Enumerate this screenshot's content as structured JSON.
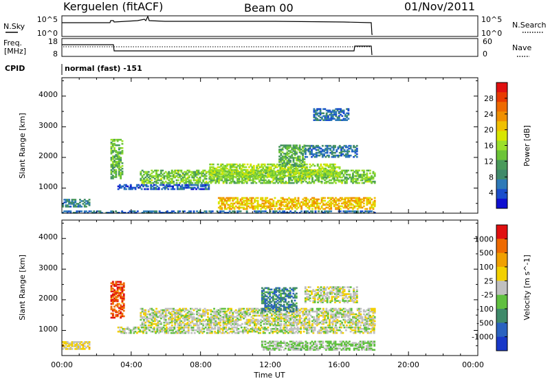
{
  "header": {
    "site_title": "Kerguelen (fitACF)",
    "beam_title": "Beam 00",
    "date_title": "01/Nov/2011"
  },
  "noise_panel": {
    "left_label": "N.Sky",
    "right_label": "N.Search",
    "left_ticks": [
      "10^5",
      "10^0"
    ],
    "right_ticks": [
      "10^5",
      "10^0"
    ]
  },
  "freq_panel": {
    "left_label_line1": "Freq.",
    "left_label_line2": "[MHz]",
    "right_label": "Nave",
    "left_ticks": [
      "18",
      "8"
    ],
    "right_ticks": [
      "60",
      "0"
    ],
    "freq_mhz_low": 11.5,
    "freq_mhz_high": 13.0,
    "nave_level": 22
  },
  "cpid": {
    "label": "CPID",
    "text": "normal (fast) -151"
  },
  "chart_data": [
    {
      "type": "heatmap",
      "title": "Power",
      "xlabel": "",
      "ylabel": "Slant Range [km]",
      "xlim": [
        0,
        24
      ],
      "ylim": [
        180,
        4600
      ],
      "x_ticks": [
        "00:00",
        "04:00",
        "08:00",
        "12:00",
        "16:00",
        "20:00",
        "00:00"
      ],
      "y_ticks": [
        "1000",
        "2000",
        "3000",
        "4000"
      ],
      "colorbar": {
        "label": "Power [dB]",
        "range": [
          0,
          32
        ],
        "ticks": [
          "4",
          "8",
          "12",
          "16",
          "20",
          "24",
          "28"
        ],
        "colors": [
          "#1010d0",
          "#1a4ecc",
          "#2e7ab8",
          "#3f8a6a",
          "#4a9a5a",
          "#6cc438",
          "#9be02a",
          "#d8e600",
          "#f0c000",
          "#f09000",
          "#ee6a00",
          "#e83a00",
          "#e01010"
        ]
      },
      "bands": [
        {
          "t0": 0.0,
          "t1": 18.0,
          "r0": 180,
          "r1": 260,
          "value": 6
        },
        {
          "t0": 0.0,
          "t1": 1.6,
          "r0": 380,
          "r1": 650,
          "value": 8
        },
        {
          "t0": 2.8,
          "t1": 3.5,
          "r0": 1300,
          "r1": 2600,
          "value": 13
        },
        {
          "t0": 3.2,
          "t1": 8.5,
          "r0": 950,
          "r1": 1100,
          "value": 5
        },
        {
          "t0": 4.5,
          "t1": 18.0,
          "r0": 1150,
          "r1": 1600,
          "value": 14
        },
        {
          "t0": 8.5,
          "t1": 16.0,
          "r0": 1350,
          "r1": 1800,
          "value": 16
        },
        {
          "t0": 9.0,
          "t1": 18.0,
          "r0": 300,
          "r1": 700,
          "value": 21
        },
        {
          "t0": 12.5,
          "t1": 14.0,
          "r0": 1700,
          "r1": 2400,
          "value": 12
        },
        {
          "t0": 14.0,
          "t1": 17.0,
          "r0": 2000,
          "r1": 2400,
          "value": 7
        },
        {
          "t0": 14.5,
          "t1": 16.5,
          "r0": 3200,
          "r1": 3600,
          "value": 6
        }
      ]
    },
    {
      "type": "heatmap",
      "title": "Velocity",
      "xlabel": "Time UT",
      "ylabel": "Slant Range [km]",
      "xlim": [
        0,
        24
      ],
      "ylim": [
        180,
        4600
      ],
      "x_ticks": [
        "00:00",
        "04:00",
        "08:00",
        "12:00",
        "16:00",
        "20:00",
        "00:00"
      ],
      "y_ticks": [
        "1000",
        "2000",
        "3000",
        "4000"
      ],
      "colorbar": {
        "label": "Velocity [m s^-1]",
        "range": [
          -1200,
          1200
        ],
        "ticks": [
          "1000",
          "500",
          "100",
          "25",
          "-25",
          "-100",
          "-500",
          "-1000"
        ],
        "colors": [
          "#1838c8",
          "#2a62c0",
          "#3f8a6a",
          "#60c040",
          "#c0c0c0",
          "#f2d000",
          "#f0a000",
          "#ee6a00",
          "#e01010"
        ]
      },
      "bands": [
        {
          "t0": 0.0,
          "t1": 1.6,
          "r0": 380,
          "r1": 650,
          "value": 200
        },
        {
          "t0": 2.8,
          "t1": 3.6,
          "r0": 1400,
          "r1": 2600,
          "value": 900
        },
        {
          "t0": 3.2,
          "t1": 18.0,
          "r0": 900,
          "r1": 1100,
          "value": 0
        },
        {
          "t0": 4.5,
          "t1": 18.0,
          "r0": 1150,
          "r1": 1700,
          "value": 0
        },
        {
          "t0": 11.5,
          "t1": 13.5,
          "r0": 1600,
          "r1": 2400,
          "value": -600
        },
        {
          "t0": 11.5,
          "t1": 18.0,
          "r0": 350,
          "r1": 650,
          "value": -150
        },
        {
          "t0": 14.0,
          "t1": 17.0,
          "r0": 1900,
          "r1": 2400,
          "value": 0
        }
      ]
    }
  ]
}
